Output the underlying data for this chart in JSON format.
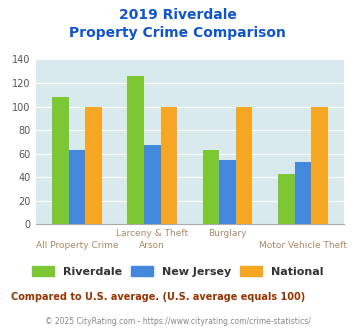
{
  "title_line1": "2019 Riverdale",
  "title_line2": "Property Crime Comparison",
  "group_labels_top": [
    "",
    "Larceny & Theft",
    "Burglary",
    ""
  ],
  "group_labels_bottom": [
    "All Property Crime",
    "Arson",
    "",
    "Motor Vehicle Theft"
  ],
  "series": {
    "Riverdale": [
      108,
      126,
      63,
      43
    ],
    "New Jersey": [
      63,
      67,
      55,
      53
    ],
    "National": [
      100,
      100,
      100,
      100
    ]
  },
  "colors": {
    "Riverdale": "#7dc832",
    "New Jersey": "#4488dd",
    "National": "#f5a623"
  },
  "ylim": [
    0,
    140
  ],
  "yticks": [
    0,
    20,
    40,
    60,
    80,
    100,
    120,
    140
  ],
  "bg_color": "#d8eaed",
  "title_color": "#1155cc",
  "subtitle_note": "Compared to U.S. average. (U.S. average equals 100)",
  "subtitle_note_color": "#993300",
  "footer": "© 2025 CityRating.com - https://www.cityrating.com/crime-statistics/",
  "footer_color": "#888888",
  "legend_labels": [
    "Riverdale",
    "New Jersey",
    "National"
  ]
}
